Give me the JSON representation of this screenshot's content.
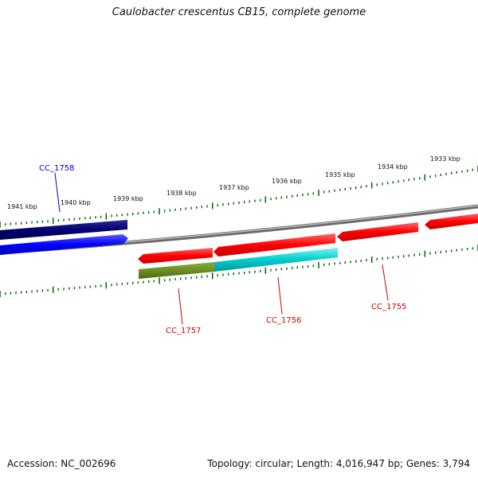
{
  "title": "Caulobacter crescentus CB15, complete genome",
  "footer": {
    "accession": "Accession: NC_002696",
    "summary": "Topology: circular; Length: 4,016,947 bp; Genes: 3,794"
  },
  "scale": {
    "upper_labels": [
      "1941 kbp",
      "1940 kbp",
      "1939 kbp",
      "1938 kbp",
      "1937 kbp",
      "1936 kbp",
      "1935 kbp",
      "1934 kbp",
      "1933 kbp"
    ]
  },
  "genes": [
    {
      "id": "CC_1758",
      "label": "CC_1758",
      "strand": "+",
      "color": "#00008b"
    },
    {
      "id": "CC_1757",
      "label": "CC_1757",
      "strand": "-",
      "color": "#ff0000"
    },
    {
      "id": "CC_1756",
      "label": "CC_1756",
      "strand": "-",
      "color": "#ff0000"
    },
    {
      "id": "CC_1755",
      "label": "CC_1755",
      "strand": "-",
      "color": "#ff0000"
    }
  ],
  "colors": {
    "backbone": "#808080",
    "ticks": "#006400",
    "plus_cds": "#0000ff",
    "plus_gene": "#00008b",
    "minus_cds": "#ff0000",
    "minus_orf_a": "#6b8e23",
    "minus_orf_b": "#00cccc",
    "label_plus": "#0000cc",
    "label_minus": "#cc0000"
  }
}
